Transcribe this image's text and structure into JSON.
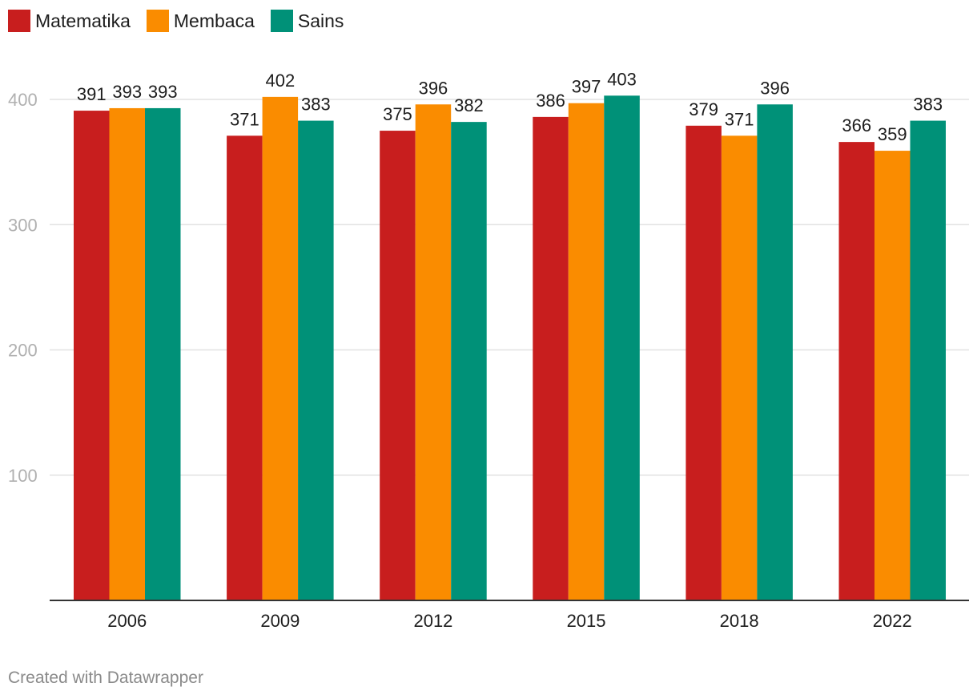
{
  "legend": {
    "items": [
      {
        "label": "Matematika",
        "color": "#c81e1e"
      },
      {
        "label": "Membaca",
        "color": "#fa8c00"
      },
      {
        "label": "Sains",
        "color": "#009178"
      }
    ]
  },
  "chart_data": {
    "type": "bar",
    "title": "",
    "xlabel": "",
    "ylabel": "",
    "categories": [
      "2006",
      "2009",
      "2012",
      "2015",
      "2018",
      "2022"
    ],
    "series": [
      {
        "name": "Matematika",
        "color": "#c81e1e",
        "values": [
          391,
          371,
          375,
          386,
          379,
          366
        ]
      },
      {
        "name": "Membaca",
        "color": "#fa8c00",
        "values": [
          393,
          402,
          396,
          397,
          371,
          359
        ]
      },
      {
        "name": "Sains",
        "color": "#009178",
        "values": [
          393,
          383,
          382,
          403,
          396,
          383
        ]
      }
    ],
    "ylim": [
      0,
      400
    ],
    "yticks": [
      100,
      200,
      300,
      400
    ],
    "grid": true,
    "data_labels": true,
    "legend_position": "top-left"
  },
  "footer": {
    "text": "Created with Datawrapper"
  }
}
